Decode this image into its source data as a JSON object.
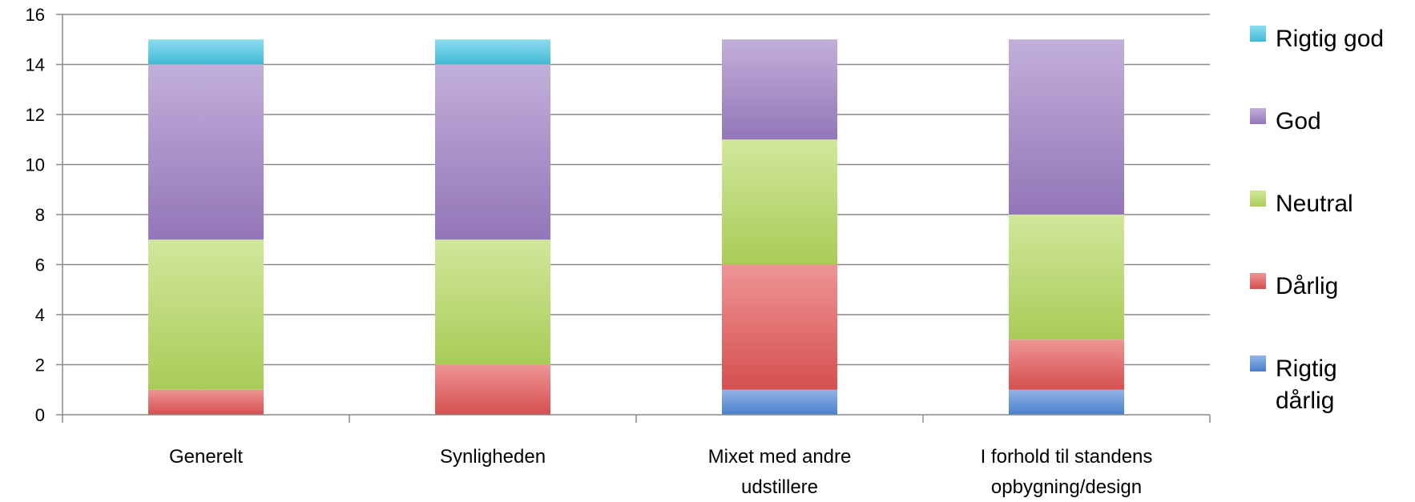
{
  "chart_data": {
    "type": "bar",
    "stacked": true,
    "categories": [
      [
        "Generelt"
      ],
      [
        "Synligheden"
      ],
      [
        "Mixet med andre",
        "udstillere"
      ],
      [
        "I forhold til standens",
        "opbygning/design"
      ]
    ],
    "series": [
      {
        "name": "Rigtig dårlig",
        "legend_lines": [
          "Rigtig",
          "dårlig"
        ],
        "color": "#4f87d8",
        "values": [
          0,
          0,
          1,
          1
        ]
      },
      {
        "name": "Dårlig",
        "legend_lines": [
          "Dårlig"
        ],
        "color": "#e45454",
        "values": [
          1,
          2,
          5,
          2
        ]
      },
      {
        "name": "Neutral",
        "legend_lines": [
          "Neutral"
        ],
        "color": "#b4d95e",
        "values": [
          6,
          5,
          5,
          5
        ]
      },
      {
        "name": "God",
        "legend_lines": [
          "God"
        ],
        "color": "#9c7ec4",
        "values": [
          7,
          7,
          4,
          7
        ]
      },
      {
        "name": "Rigtig god",
        "legend_lines": [
          "Rigtig god"
        ],
        "color": "#45c6e3",
        "values": [
          1,
          1,
          0,
          0
        ]
      }
    ],
    "ylim": [
      0,
      16
    ],
    "yticks": [
      0,
      2,
      4,
      6,
      8,
      10,
      12,
      14,
      16
    ],
    "grid": true,
    "legend": "right",
    "title": "",
    "xlabel": "",
    "ylabel": ""
  }
}
